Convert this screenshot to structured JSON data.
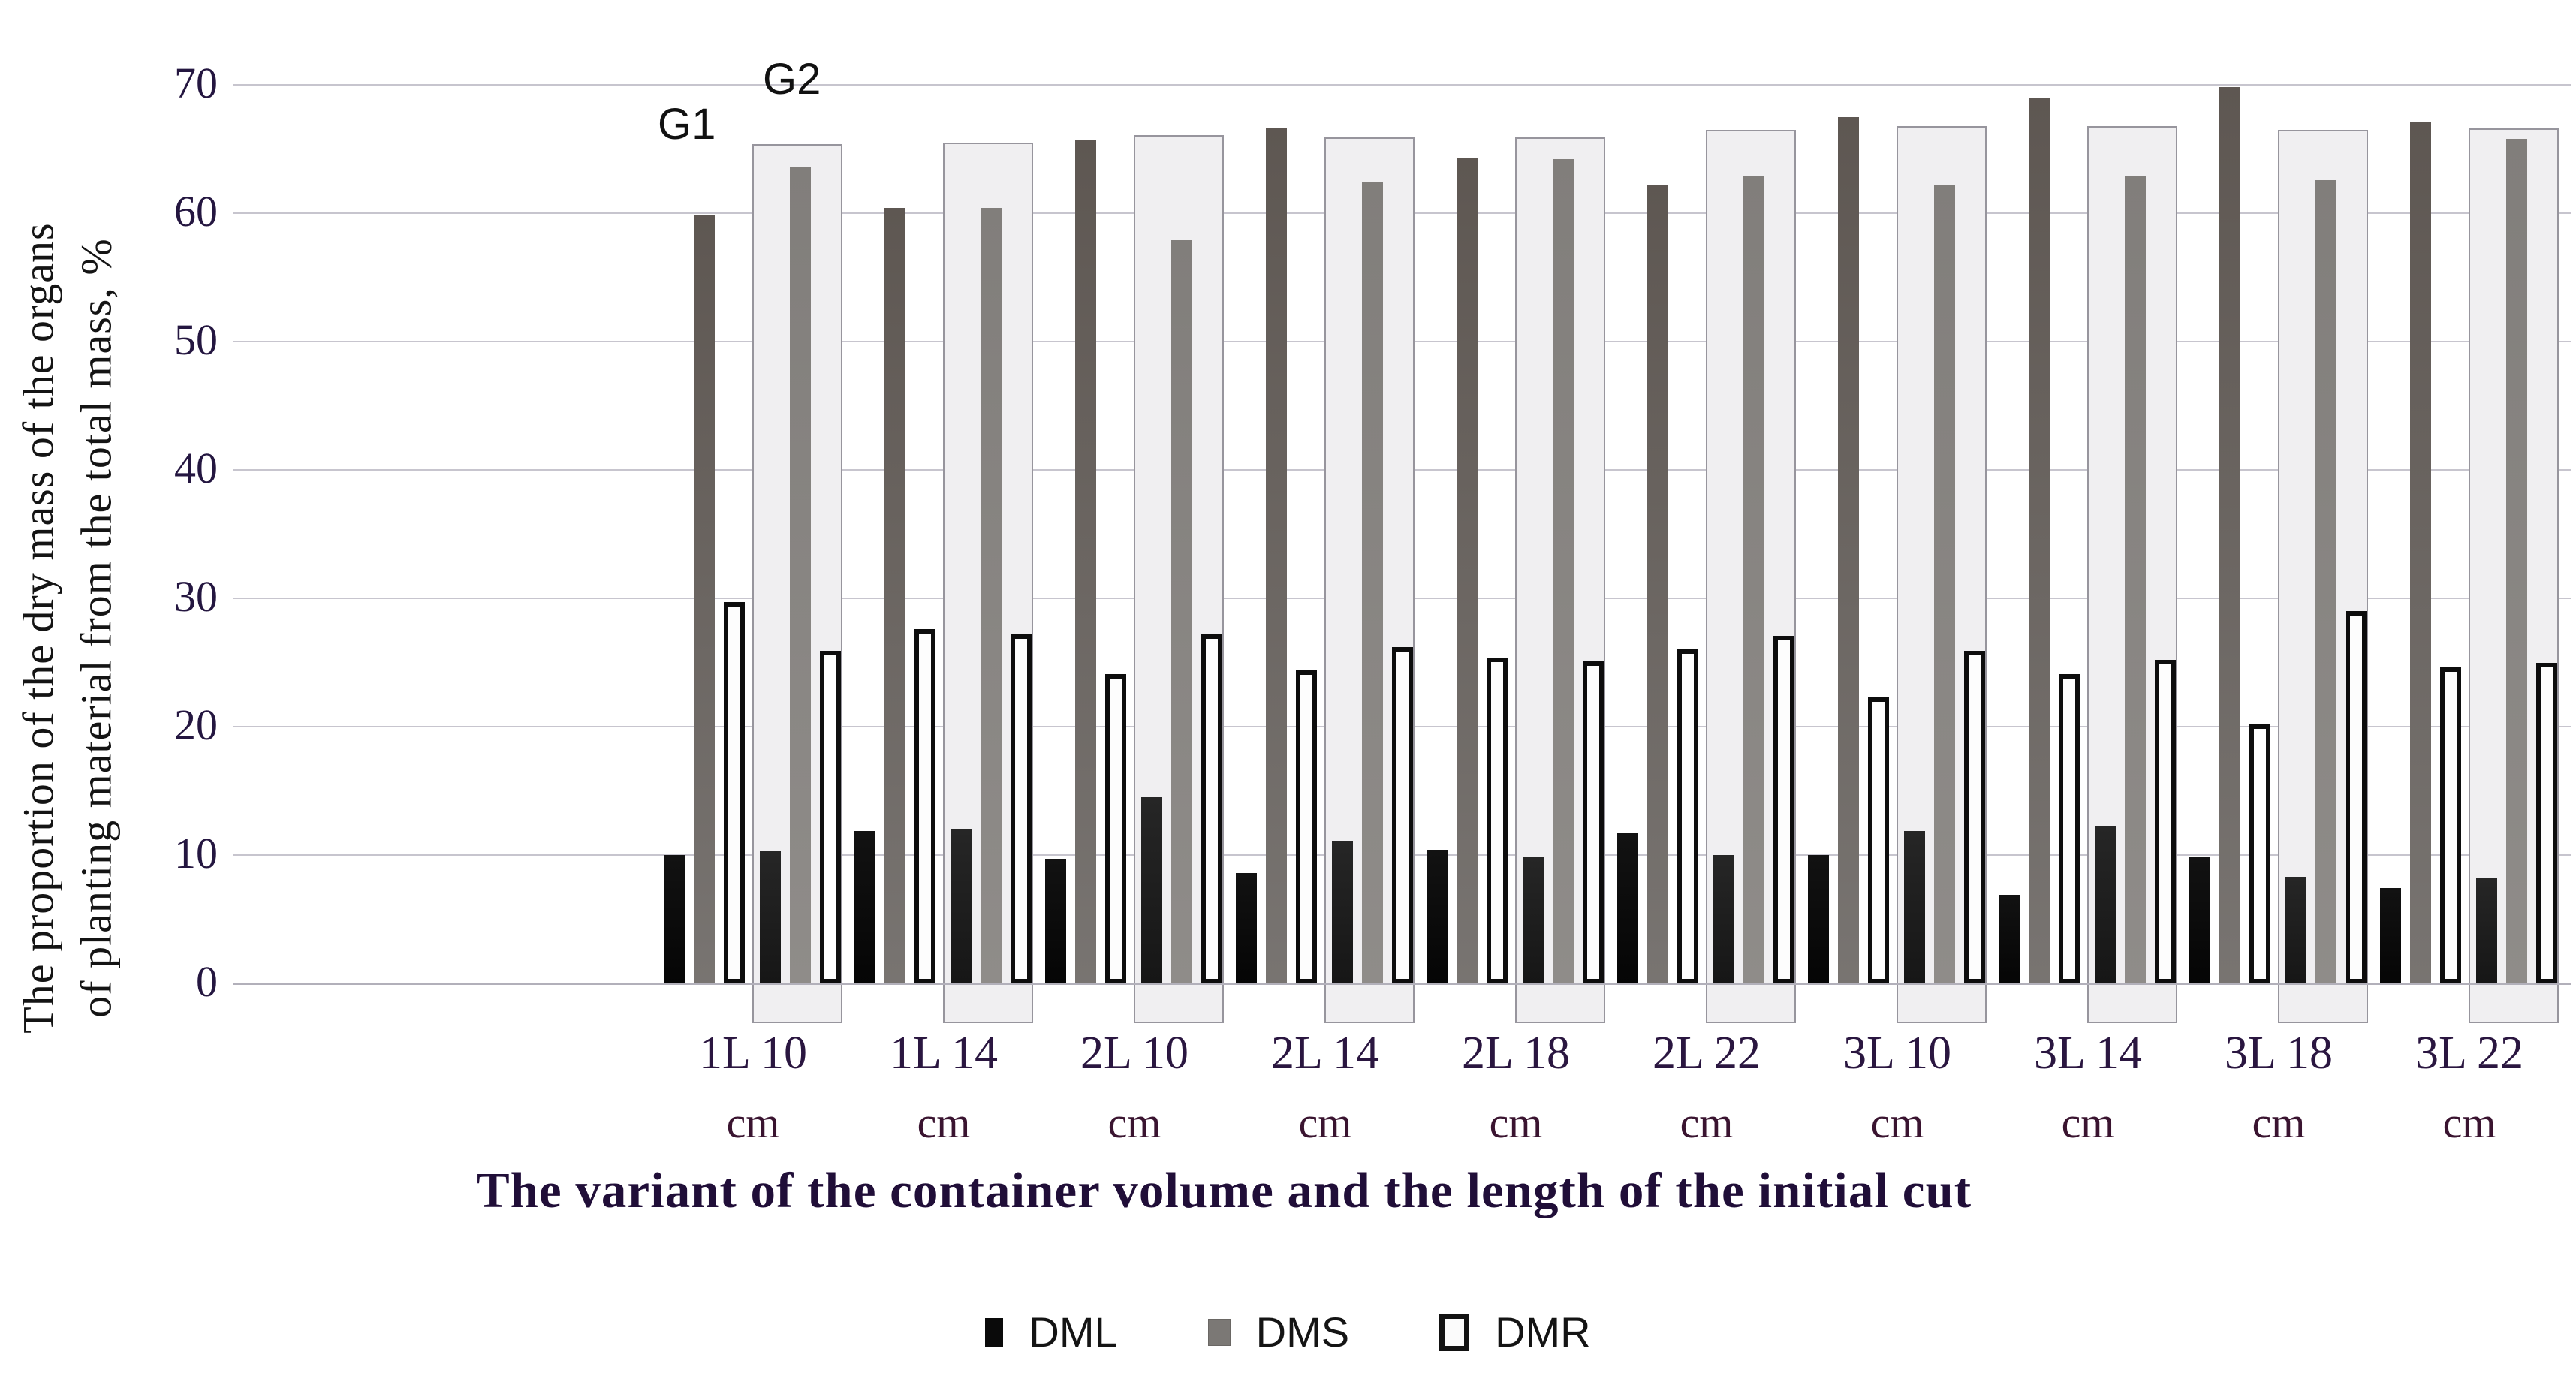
{
  "chart_data": {
    "type": "bar",
    "title": "",
    "ylabel_line1": "The proportion of the dry mass of the organs",
    "ylabel_line2": "of planting material  from the total mass, %",
    "xlabel": "The variant of the container volume  and the length of the initial cut",
    "ylim": [
      0,
      70
    ],
    "yticks": [
      0,
      10,
      20,
      30,
      40,
      50,
      60,
      70
    ],
    "grid": true,
    "legend_position": "bottom",
    "categories": [
      "1L 10",
      "1L 14",
      "2L 10",
      "2L 14",
      "2L 18",
      "2L 22",
      "3L 10",
      "3L 14",
      "3L 18",
      "3L 22"
    ],
    "category_unit": "cm",
    "subgroups": [
      "G1",
      "G2"
    ],
    "subgroup_annotations": {
      "g1": "G1",
      "g2": "G2"
    },
    "legend": [
      "DML",
      "DMS",
      "DMR"
    ],
    "series": [
      {
        "name": "DML",
        "subgroup": "G1",
        "values": [
          10.0,
          11.9,
          9.7,
          8.6,
          10.4,
          11.7,
          10.0,
          6.9,
          9.8,
          7.4
        ]
      },
      {
        "name": "DMS",
        "subgroup": "G1",
        "values": [
          59.9,
          60.4,
          65.7,
          66.6,
          64.3,
          62.2,
          67.5,
          69.0,
          69.8,
          67.1
        ]
      },
      {
        "name": "DMR",
        "subgroup": "G1",
        "values": [
          29.7,
          27.6,
          24.1,
          24.4,
          25.4,
          26.0,
          22.3,
          24.1,
          20.2,
          24.6
        ]
      },
      {
        "name": "DML",
        "subgroup": "G2",
        "values": [
          10.3,
          12.0,
          14.5,
          11.1,
          9.9,
          10.0,
          11.9,
          12.3,
          8.3,
          8.2
        ]
      },
      {
        "name": "DMS",
        "subgroup": "G2",
        "values": [
          63.6,
          60.4,
          57.9,
          62.4,
          64.2,
          62.9,
          62.2,
          62.9,
          62.6,
          65.8
        ]
      },
      {
        "name": "DMR",
        "subgroup": "G2",
        "values": [
          25.9,
          27.2,
          27.2,
          26.2,
          25.1,
          27.1,
          25.9,
          25.2,
          29.0,
          25.0
        ]
      }
    ],
    "g2_highlight_box": {
      "tops": [
        65.4,
        65.5,
        66.1,
        65.9,
        65.9,
        66.5,
        66.8,
        66.8,
        66.5,
        66.6
      ],
      "bottom": -3.1
    },
    "colors": {
      "dml_g1": "#0a0a0a",
      "dml_g2": "#1d1d1d",
      "dms_g1": "#6e6a66",
      "dms_g2": "#868380",
      "dmr_fill": "#fdfdfd",
      "dmr_border": "#0d0d0d",
      "box_fill": "#f0eff1",
      "box_border": "#97959d",
      "gridline": "#c7c5ce",
      "tick_text": "#241640",
      "axis_text": "#200e38"
    }
  }
}
